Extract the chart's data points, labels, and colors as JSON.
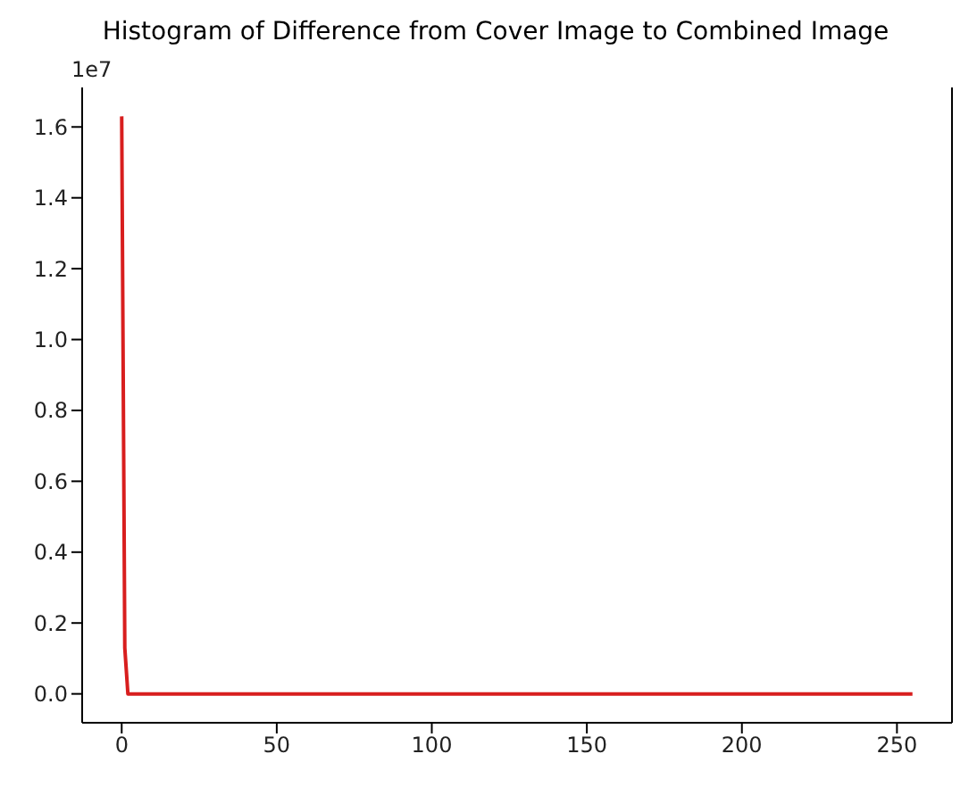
{
  "chart_data": {
    "type": "line",
    "title": "Histogram of Difference from Cover Image to Combined Image",
    "annotations": [
      "1e7"
    ],
    "x": [
      0,
      1,
      2,
      3,
      50,
      100,
      150,
      200,
      255
    ],
    "series": [
      {
        "color": "#d81e1e",
        "values": [
          1.63,
          0.13,
          0,
          0,
          0,
          0,
          0,
          0,
          0
        ]
      }
    ],
    "xlim": [
      -12.75,
      267.75
    ],
    "xticks": [
      0,
      50,
      100,
      150,
      200,
      250
    ],
    "ylim": [
      -0.0815,
      1.7115
    ],
    "yticks": [
      {
        "value": 0,
        "label": "0.0"
      },
      {
        "value": 0.2,
        "label": "0.2"
      },
      {
        "value": 0.4,
        "label": "0.4"
      },
      {
        "value": 0.6,
        "label": "0.6"
      },
      {
        "value": 0.8,
        "label": "0.8"
      },
      {
        "value": 1,
        "label": "1.0"
      },
      {
        "value": 1.2,
        "label": "1.2"
      },
      {
        "value": 1.4,
        "label": "1.4"
      },
      {
        "value": 1.6,
        "label": "1.6"
      }
    ],
    "grid": false,
    "legend": false,
    "marker": "none",
    "line_style": "solid"
  }
}
